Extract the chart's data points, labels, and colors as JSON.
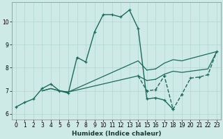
{
  "title": "",
  "xlabel": "Humidex (Indice chaleur)",
  "background_color": "#ceeae6",
  "line_color": "#1a6b5a",
  "xlim": [
    -0.5,
    23.5
  ],
  "ylim": [
    5.75,
    10.85
  ],
  "xticks": [
    0,
    1,
    2,
    3,
    4,
    5,
    6,
    7,
    8,
    9,
    10,
    11,
    12,
    13,
    14,
    15,
    16,
    17,
    18,
    19,
    20,
    21,
    22,
    23
  ],
  "yticks": [
    6,
    7,
    8,
    9,
    10
  ],
  "curve1_x": [
    0,
    1,
    2,
    3,
    4,
    5,
    6,
    7,
    8,
    9,
    10,
    11,
    12,
    13,
    14,
    15,
    16,
    17,
    18
  ],
  "curve1_y": [
    6.3,
    6.5,
    6.65,
    7.1,
    7.3,
    7.0,
    6.9,
    8.45,
    8.25,
    9.55,
    10.3,
    10.3,
    10.2,
    10.5,
    9.7,
    6.65,
    6.7,
    6.6,
    6.2
  ],
  "curve2_x": [
    3,
    4,
    5,
    6,
    14,
    15,
    16,
    17,
    18,
    19,
    20,
    21,
    22,
    23
  ],
  "curve2_y": [
    7.0,
    7.1,
    7.0,
    6.95,
    7.65,
    7.45,
    7.5,
    7.72,
    7.85,
    7.8,
    7.85,
    7.9,
    7.95,
    8.7
  ],
  "curve3_x": [
    3,
    4,
    5,
    6,
    14,
    15,
    16,
    17,
    18,
    19,
    20,
    21,
    22,
    23
  ],
  "curve3_y": [
    7.0,
    7.1,
    7.0,
    6.95,
    8.3,
    7.9,
    7.95,
    8.2,
    8.35,
    8.3,
    8.4,
    8.5,
    8.6,
    8.7
  ],
  "curve4_x": [
    14,
    15,
    16,
    17,
    18,
    19,
    20,
    21,
    22,
    23
  ],
  "curve4_y": [
    7.65,
    7.0,
    7.05,
    7.65,
    6.2,
    6.85,
    7.55,
    7.6,
    7.7,
    8.7
  ],
  "grid_color": "#b0d8d0",
  "tick_fontsize": 5.5,
  "label_fontsize": 6.5
}
